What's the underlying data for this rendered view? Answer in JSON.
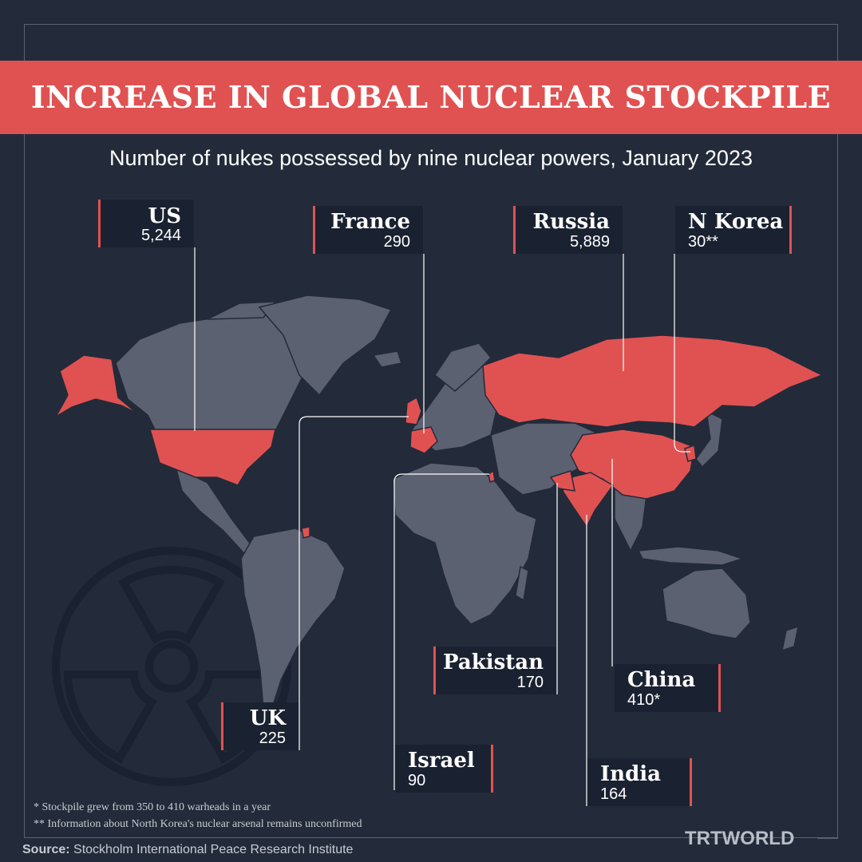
{
  "title": "INCREASE IN GLOBAL NUCLEAR STOCKPILE",
  "subtitle": "Number of nukes possessed by nine nuclear powers, January 2023",
  "colors": {
    "background": "#232b3a",
    "accent": "#e05252",
    "land": "#5b6170",
    "label_bg": "#1a2130"
  },
  "countries": [
    {
      "name": "US",
      "value": "5,244",
      "highlighted": true
    },
    {
      "name": "France",
      "value": "290",
      "highlighted": true
    },
    {
      "name": "Russia",
      "value": "5,889",
      "highlighted": true
    },
    {
      "name": "N Korea",
      "value": "30**",
      "highlighted": true
    },
    {
      "name": "Pakistan",
      "value": "170",
      "highlighted": true
    },
    {
      "name": "China",
      "value": "410*",
      "highlighted": true
    },
    {
      "name": "UK",
      "value": "225",
      "highlighted": true
    },
    {
      "name": "Israel",
      "value": "90",
      "highlighted": true
    },
    {
      "name": "India",
      "value": "164",
      "highlighted": true
    }
  ],
  "footnotes": [
    "* Stockpile grew from 350 to 410 warheads in a year",
    "** Information about North Korea's nuclear arsenal remains unconfirmed"
  ],
  "source": {
    "label": "Source:",
    "text": "Stockholm International Peace Research Institute"
  },
  "logo": {
    "text": "TRTWORLD"
  },
  "icons": {
    "background": "radiation-icon"
  }
}
